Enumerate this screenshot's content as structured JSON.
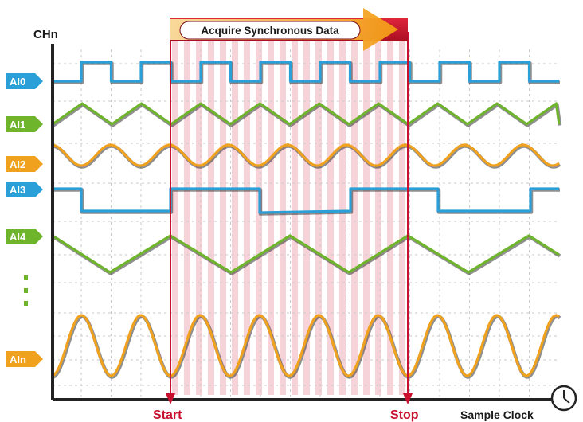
{
  "y_axis_label": "CHn",
  "x_axis_label": "Sample Clock",
  "banner_text": "Acquire Synchronous Data",
  "start_label": "Start",
  "stop_label": "Stop",
  "clock_icon": "clock-icon",
  "channels": [
    {
      "label": "AI0",
      "color": "#2a9fd8",
      "signal": "square"
    },
    {
      "label": "AI1",
      "color": "#6fb52c",
      "signal": "triangle"
    },
    {
      "label": "AI2",
      "color": "#f0a21e",
      "signal": "sine"
    },
    {
      "label": "AI3",
      "color": "#2a9fd8",
      "signal": "square-slow"
    },
    {
      "label": "AI4",
      "color": "#6fb52c",
      "signal": "triangle-slow"
    },
    {
      "label": "AIn",
      "color": "#f0a21e",
      "signal": "sine-large"
    }
  ],
  "colors": {
    "window_stripe": "#f6d3d8",
    "marker_red": "#c8102e",
    "banner_red": "#c8102e",
    "arrow_orange": "#f5a623",
    "axis": "#222222",
    "grid": "#c9c9c9",
    "ellipsis_green": "#6fb52c"
  }
}
